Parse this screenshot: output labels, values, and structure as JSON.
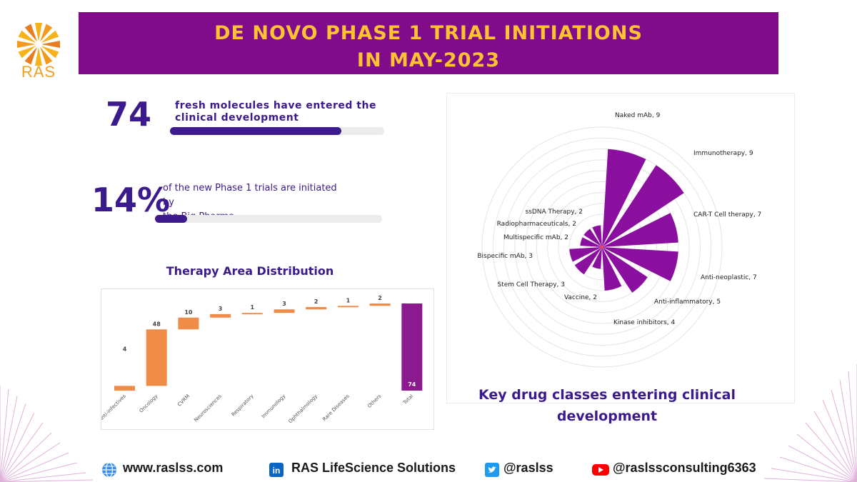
{
  "brand": {
    "logo_text": "RAS"
  },
  "banner": {
    "line1": "DE NOVO PHASE 1 TRIAL INITIATIONS",
    "line2": "IN MAY-2023"
  },
  "stats": [
    {
      "value": "74",
      "text_line1": "fresh molecules have entered the",
      "text_line2": "clinical development",
      "progress": 0.8
    },
    {
      "value": "14%",
      "text_line1": "of the new Phase 1 trials are initiated by",
      "text_line2": "the Big Pharma",
      "progress": 0.14
    }
  ],
  "colors": {
    "banner": "#800c8c",
    "banner_text": "#ffc233",
    "accent": "#3b1a8e",
    "waterfall_bar": "#f08c48",
    "total_bar": "#8b1a8e",
    "polar_fill": "#8b0f9e"
  },
  "chart_data": [
    {
      "type": "bar",
      "subtype": "waterfall",
      "title": "Therapy Area Distribution",
      "categories": [
        "Anti-infectives",
        "Oncology",
        "CVRM",
        "Neurosciences",
        "Respiratory",
        "Immunology",
        "Ophthalmology",
        "Rare Diseases",
        "Others",
        "Total"
      ],
      "values": [
        4,
        48,
        10,
        3,
        1,
        3,
        2,
        1,
        2,
        74
      ],
      "total_label": "74",
      "ylim": [
        0,
        74
      ],
      "grid": false
    },
    {
      "type": "bar",
      "subtype": "polar",
      "title": "Key drug classes entering clinical development",
      "categories": [
        "Naked mAb",
        "Immunotherapy",
        "CAR-T Cell therapy",
        "Anti-neoplastic",
        "Anti-inflammatory",
        "Kinase inhibitors",
        "Vaccine",
        "Stem Cell Therapy",
        "Bispecific mAb",
        "Multispecific mAb",
        "Radiopharmaceuticals",
        "ssDNA Therapy"
      ],
      "values": [
        9,
        9,
        7,
        7,
        5,
        4,
        2,
        3,
        3,
        2,
        2,
        2
      ],
      "labels": [
        "Naked mAb, 9",
        "Immunotherapy, 9",
        "CAR-T Cell therapy, 7",
        "Anti-neoplastic, 7",
        "Anti-inflammatory, 5",
        "Kinase inhibitors, 4",
        "Vaccine, 2",
        "Stem Cell Therapy, 3",
        "Bispecific mAb, 3",
        "Multispecific mAb, 2",
        "Radiopharmaceuticals, 2",
        "ssDNA Therapy, 2"
      ],
      "rmax": 11,
      "grid": true
    }
  ],
  "footer": {
    "website": "www.raslss.com",
    "linkedin": "RAS LifeScience Solutions",
    "twitter": "@raslss",
    "youtube": "@raslssconsulting6363"
  }
}
